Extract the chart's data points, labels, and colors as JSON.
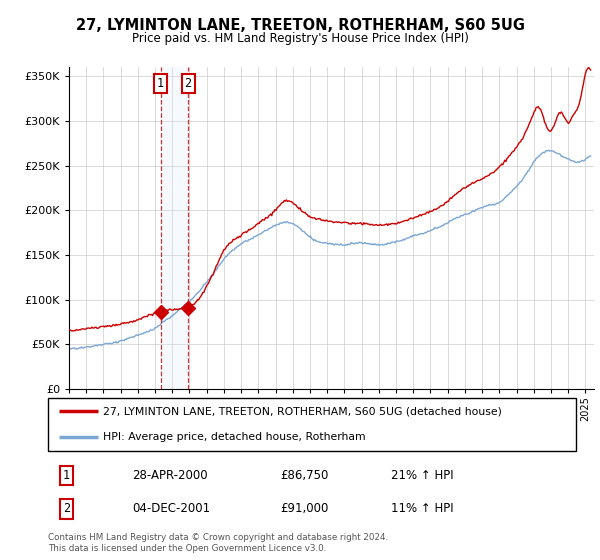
{
  "title": "27, LYMINTON LANE, TREETON, ROTHERHAM, S60 5UG",
  "subtitle": "Price paid vs. HM Land Registry's House Price Index (HPI)",
  "sale1_date": 2000.32,
  "sale1_price": 86750,
  "sale2_date": 2001.92,
  "sale2_price": 91000,
  "sale1_display": "28-APR-2000",
  "sale2_display": "04-DEC-2001",
  "sale1_price_display": "£86,750",
  "sale2_price_display": "£91,000",
  "sale1_pct": "21% ↑ HPI",
  "sale2_pct": "11% ↑ HPI",
  "xmin": 1995.0,
  "xmax": 2025.5,
  "ymin": 0,
  "ymax": 360000,
  "yticks": [
    0,
    50000,
    100000,
    150000,
    200000,
    250000,
    300000,
    350000
  ],
  "red_color": "#cc0000",
  "blue_color": "#7ba7d4",
  "shade_color": "#ddeeff",
  "legend_red": "27, LYMINTON LANE, TREETON, ROTHERHAM, S60 5UG (detached house)",
  "legend_blue": "HPI: Average price, detached house, Rotherham",
  "footnote": "Contains HM Land Registry data © Crown copyright and database right 2024.\nThis data is licensed under the Open Government Licence v3.0.",
  "fig_width": 6.0,
  "fig_height": 5.6,
  "dpi": 100
}
